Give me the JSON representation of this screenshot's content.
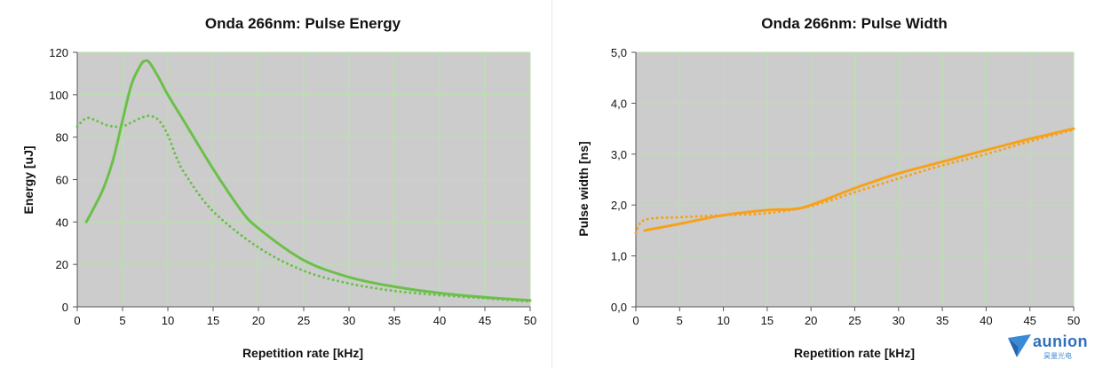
{
  "chart_data": [
    {
      "type": "line",
      "title": "Onda 266nm: Pulse Energy",
      "xlabel": "Repetition rate [kHz]",
      "ylabel": "Energy [uJ]",
      "xlim": [
        0,
        50
      ],
      "ylim": [
        0,
        120
      ],
      "xticks": [
        "0",
        "5",
        "10",
        "15",
        "20",
        "25",
        "30",
        "35",
        "40",
        "45",
        "50"
      ],
      "yticks": [
        "0",
        "20",
        "40",
        "60",
        "80",
        "100",
        "120"
      ],
      "grid": true,
      "color": "#6cc04a",
      "series": [
        {
          "style": "solid",
          "x": [
            1,
            2,
            3,
            4,
            5,
            6,
            7,
            7.5,
            8,
            9,
            10,
            12,
            15,
            18,
            20,
            25,
            30,
            35,
            40,
            45,
            50
          ],
          "y": [
            40,
            48,
            57,
            70,
            88,
            105,
            114,
            116,
            115,
            108,
            100,
            86,
            65,
            46,
            37,
            22,
            14,
            9.5,
            6.5,
            4.5,
            3
          ]
        },
        {
          "style": "dotted",
          "x": [
            0,
            1,
            2,
            3,
            4,
            5,
            6,
            7,
            8,
            9,
            10,
            11,
            12,
            15,
            20,
            25,
            30,
            35,
            40,
            45,
            50
          ],
          "y": [
            85,
            89,
            88,
            86,
            85,
            85,
            87,
            89,
            90,
            88,
            81,
            70,
            62,
            45,
            28,
            17,
            11,
            7.5,
            5.5,
            4,
            2.5
          ]
        }
      ]
    },
    {
      "type": "line",
      "title": "Onda 266nm: Pulse Width",
      "xlabel": "Repetition rate [kHz]",
      "ylabel": "Pulse width [ns]",
      "xlim": [
        0,
        50
      ],
      "ylim": [
        0,
        5
      ],
      "xticks": [
        "0",
        "5",
        "10",
        "15",
        "20",
        "25",
        "30",
        "35",
        "40",
        "45",
        "50"
      ],
      "yticks": [
        "0,0",
        "1,0",
        "2,0",
        "3,0",
        "4,0",
        "5,0"
      ],
      "grid": true,
      "color": "#f7a11a",
      "series": [
        {
          "style": "solid",
          "x": [
            1,
            5,
            10,
            15,
            18,
            20,
            25,
            30,
            35,
            40,
            45,
            50
          ],
          "y": [
            1.5,
            1.63,
            1.8,
            1.9,
            1.92,
            2.0,
            2.33,
            2.62,
            2.85,
            3.08,
            3.3,
            3.5
          ]
        },
        {
          "style": "dotted",
          "x": [
            0,
            0.5,
            1.5,
            3,
            5,
            10,
            15,
            20,
            25,
            30,
            35,
            40,
            45,
            50
          ],
          "y": [
            1.45,
            1.65,
            1.73,
            1.75,
            1.76,
            1.8,
            1.84,
            1.98,
            2.25,
            2.52,
            2.78,
            3.0,
            3.25,
            3.48
          ]
        }
      ]
    }
  ],
  "logo": {
    "name": "aunion",
    "subtitle": "昊量光电"
  }
}
